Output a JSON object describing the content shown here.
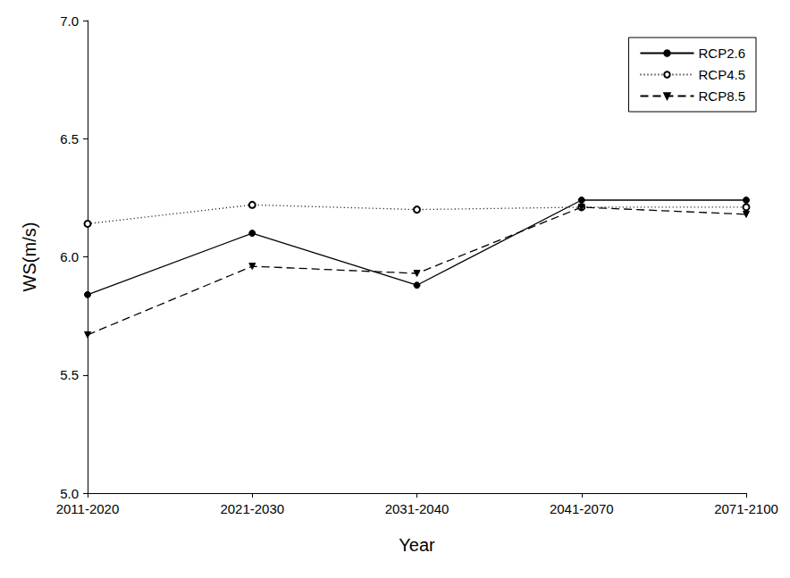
{
  "chart_data": {
    "type": "line",
    "x_label": "Year",
    "y_label": "WS(m/s)",
    "categories": [
      "2011-2020",
      "2021-2030",
      "2031-2040",
      "2041-2070",
      "2071-2100"
    ],
    "series": [
      {
        "name": "RCP2.6",
        "color": "#000000",
        "marker": "circle",
        "line_style": "solid",
        "values": [
          5.84,
          6.1,
          5.88,
          6.24,
          6.24
        ]
      },
      {
        "name": "RCP4.5",
        "color": "#000000",
        "marker": "open_circle",
        "line_style": "dotted",
        "values": [
          6.14,
          6.22,
          6.2,
          6.21,
          6.21
        ]
      },
      {
        "name": "RCP8.5",
        "color": "#000000",
        "marker": "triangle_down",
        "line_style": "dashed",
        "values": [
          5.67,
          5.96,
          5.93,
          6.21,
          6.18
        ]
      }
    ],
    "ylim": [
      5.0,
      7.0
    ],
    "yticks": [
      {
        "value": 5.0,
        "label": "5.0"
      },
      5.5,
      {
        "value": 6.0,
        "label": "6.0"
      },
      6.5,
      {
        "value": 7.0,
        "label": "7.0"
      }
    ],
    "grid": false,
    "legend": "top-right"
  }
}
